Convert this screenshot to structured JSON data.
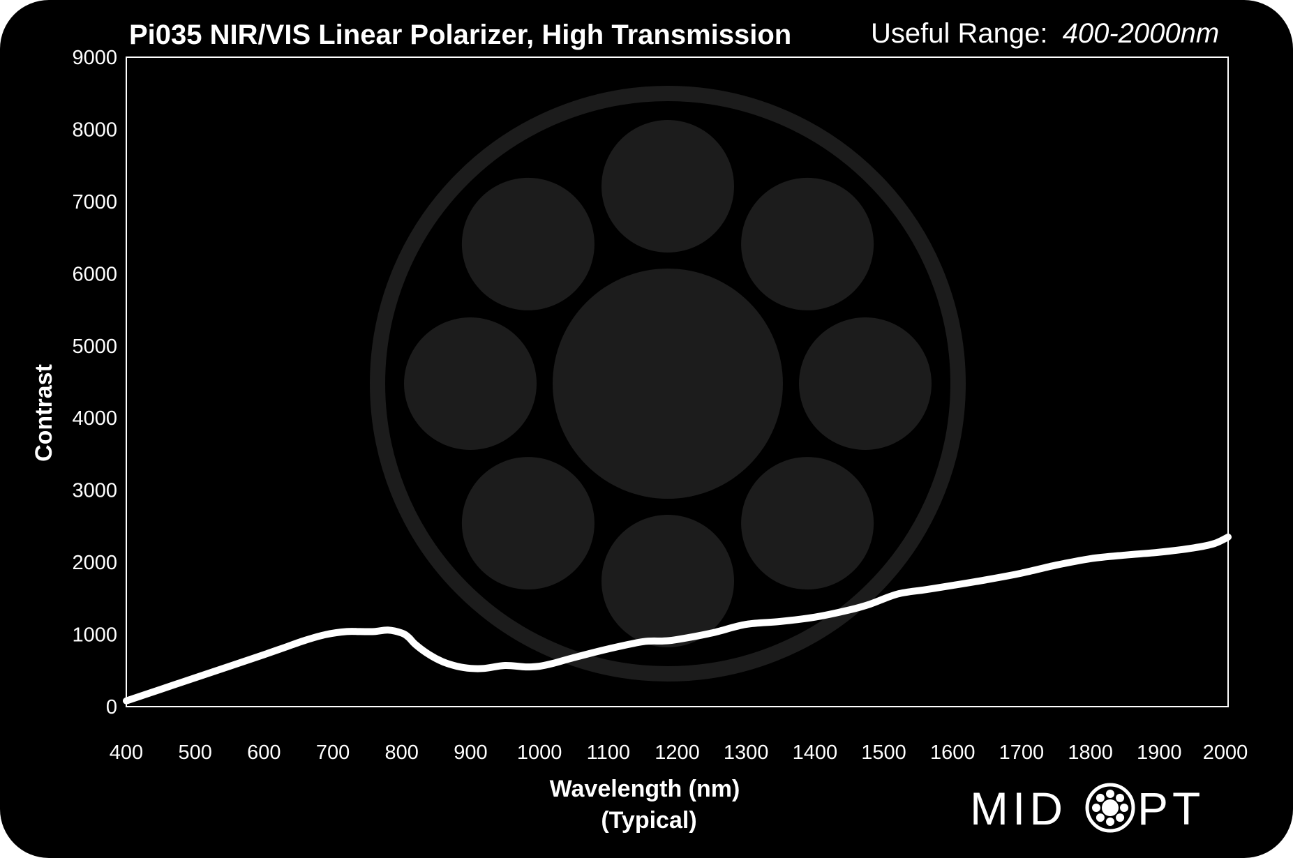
{
  "title": "Pi035 NIR/VIS Linear Polarizer, High Transmission",
  "useful_range_label": "Useful Range:",
  "useful_range_value": "400-2000nm",
  "logo": {
    "text_left": "MID",
    "text_right": "PT",
    "brand": "MIDOPT"
  },
  "colors": {
    "background": "#000000",
    "line": "#ffffff",
    "watermark": "#1c1c1c"
  },
  "chart_data": {
    "type": "line",
    "title": "Pi035 NIR/VIS Linear Polarizer, High Transmission",
    "xlabel": "Wavelength (nm)",
    "xlabel_sub": "(Typical)",
    "ylabel": "Contrast",
    "xlim": [
      400,
      2000
    ],
    "ylim": [
      0,
      9000
    ],
    "xticks": [
      400,
      500,
      600,
      700,
      800,
      900,
      1000,
      1100,
      1200,
      1300,
      1400,
      1500,
      1600,
      1700,
      1800,
      1900,
      2000
    ],
    "yticks": [
      0,
      1000,
      2000,
      3000,
      4000,
      5000,
      6000,
      7000,
      8000,
      9000
    ],
    "grid": false,
    "legend": "none",
    "series": [
      {
        "x": [
          400,
          450,
          500,
          550,
          600,
          630,
          660,
          690,
          720,
          740,
          760,
          780,
          800,
          810,
          820,
          840,
          860,
          880,
          900,
          920,
          950,
          980,
          1000,
          1020,
          1050,
          1100,
          1150,
          1180,
          1200,
          1250,
          1300,
          1350,
          1400,
          1450,
          1480,
          1520,
          1560,
          1600,
          1650,
          1700,
          1750,
          1800,
          1850,
          1900,
          1950,
          1980,
          2000
        ],
        "y": [
          80,
          240,
          400,
          560,
          720,
          820,
          920,
          1000,
          1040,
          1040,
          1040,
          1060,
          1020,
          960,
          860,
          720,
          620,
          560,
          530,
          530,
          570,
          550,
          560,
          600,
          680,
          800,
          900,
          910,
          930,
          1020,
          1140,
          1180,
          1240,
          1340,
          1420,
          1560,
          1620,
          1680,
          1760,
          1850,
          1960,
          2050,
          2100,
          2140,
          2200,
          2260,
          2350
        ]
      }
    ]
  }
}
